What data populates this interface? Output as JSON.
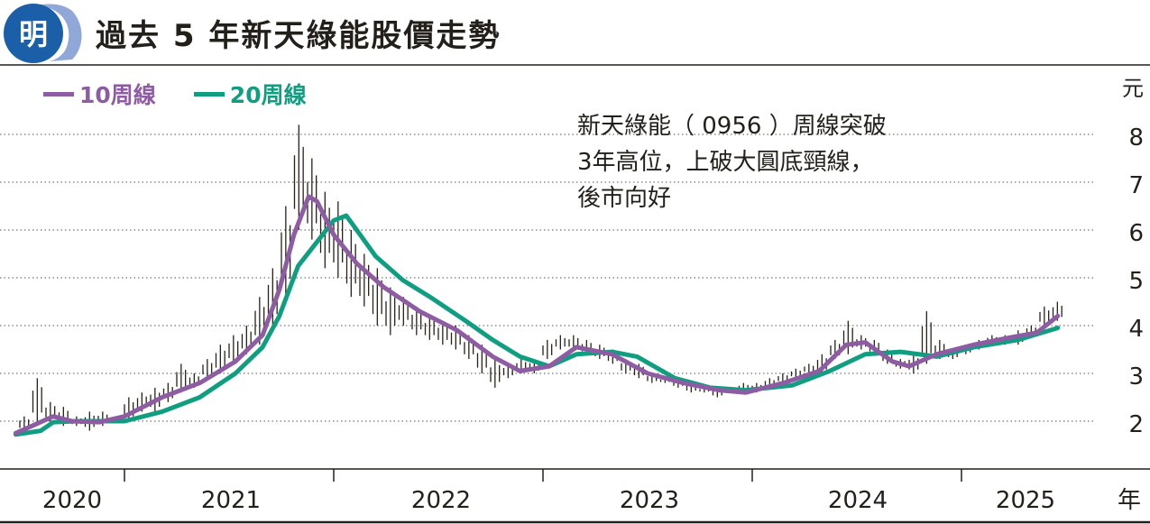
{
  "header": {
    "title": "過去 5 年新天綠能股價走勢",
    "logo_text": "明"
  },
  "colors": {
    "ma10": "#8e5ca3",
    "ma20": "#0f9f80",
    "logo": "#1a5fa8",
    "logo_light": "#8fa8d8",
    "text": "#231f1a"
  },
  "chart_data": {
    "type": "line",
    "title": "過去 5 年新天綠能股價走勢",
    "ylabel": "元",
    "xlabel": "年",
    "ylim": [
      1.5,
      8.5
    ],
    "yticks": [
      "2",
      "3",
      "4",
      "5",
      "6",
      "7",
      "8"
    ],
    "xticks": [
      "2020",
      "2021",
      "2022",
      "2023",
      "2024",
      "2025"
    ],
    "grid": true,
    "legend_position": "top-left",
    "legend": [
      "10周線",
      "20周線"
    ],
    "annotation": [
      "新天綠能（ 0956 ）周線突破",
      "3年高位，上破大圓底頸線，",
      "後市向好"
    ],
    "series": [
      {
        "name": "10周線",
        "points": [
          [
            2020.48,
            1.75
          ],
          [
            2020.66,
            2.1
          ],
          [
            2020.75,
            2.0
          ],
          [
            2020.88,
            1.98
          ],
          [
            2021.0,
            2.1
          ],
          [
            2021.18,
            2.5
          ],
          [
            2021.36,
            2.8
          ],
          [
            2021.53,
            3.25
          ],
          [
            2021.66,
            3.8
          ],
          [
            2021.74,
            4.75
          ],
          [
            2021.81,
            5.9
          ],
          [
            2021.88,
            6.7
          ],
          [
            2021.92,
            6.6
          ],
          [
            2022.0,
            5.9
          ],
          [
            2022.11,
            5.3
          ],
          [
            2022.24,
            4.8
          ],
          [
            2022.41,
            4.3
          ],
          [
            2022.59,
            3.9
          ],
          [
            2022.76,
            3.35
          ],
          [
            2022.89,
            3.05
          ],
          [
            2023.03,
            3.15
          ],
          [
            2023.16,
            3.55
          ],
          [
            2023.33,
            3.4
          ],
          [
            2023.5,
            3.0
          ],
          [
            2023.67,
            2.8
          ],
          [
            2023.84,
            2.65
          ],
          [
            2023.97,
            2.6
          ],
          [
            2024.15,
            2.8
          ],
          [
            2024.32,
            3.05
          ],
          [
            2024.45,
            3.6
          ],
          [
            2024.54,
            3.65
          ],
          [
            2024.67,
            3.25
          ],
          [
            2024.75,
            3.15
          ],
          [
            2024.88,
            3.4
          ],
          [
            2025.06,
            3.6
          ],
          [
            2025.23,
            3.75
          ],
          [
            2025.36,
            3.85
          ],
          [
            2025.46,
            4.2
          ]
        ]
      },
      {
        "name": "20周線",
        "points": [
          [
            2020.48,
            1.72
          ],
          [
            2020.6,
            1.8
          ],
          [
            2020.66,
            1.98
          ],
          [
            2020.77,
            2.0
          ],
          [
            2021.0,
            2.0
          ],
          [
            2021.18,
            2.2
          ],
          [
            2021.36,
            2.5
          ],
          [
            2021.53,
            3.0
          ],
          [
            2021.66,
            3.55
          ],
          [
            2021.74,
            4.2
          ],
          [
            2021.83,
            5.25
          ],
          [
            2021.92,
            5.75
          ],
          [
            2022.0,
            6.2
          ],
          [
            2022.06,
            6.3
          ],
          [
            2022.11,
            6.0
          ],
          [
            2022.2,
            5.45
          ],
          [
            2022.33,
            4.95
          ],
          [
            2022.46,
            4.6
          ],
          [
            2022.63,
            4.1
          ],
          [
            2022.76,
            3.7
          ],
          [
            2022.89,
            3.35
          ],
          [
            2023.03,
            3.15
          ],
          [
            2023.16,
            3.4
          ],
          [
            2023.33,
            3.45
          ],
          [
            2023.45,
            3.35
          ],
          [
            2023.63,
            2.9
          ],
          [
            2023.8,
            2.7
          ],
          [
            2023.97,
            2.65
          ],
          [
            2024.19,
            2.75
          ],
          [
            2024.37,
            3.05
          ],
          [
            2024.54,
            3.4
          ],
          [
            2024.71,
            3.45
          ],
          [
            2024.88,
            3.35
          ],
          [
            2025.06,
            3.55
          ],
          [
            2025.27,
            3.7
          ],
          [
            2025.46,
            3.95
          ]
        ]
      }
    ],
    "candles": {
      "start": 2020.5,
      "step": 0.0625,
      "low_high": [
        [
          1.8,
          2.1
        ],
        [
          2.0,
          2.9
        ],
        [
          2.0,
          2.4
        ],
        [
          1.9,
          2.3
        ],
        [
          1.9,
          2.1
        ],
        [
          1.8,
          2.2
        ],
        [
          1.9,
          2.2
        ],
        [
          2.0,
          2.1
        ],
        [
          2.0,
          2.5
        ],
        [
          2.2,
          2.6
        ],
        [
          2.2,
          2.7
        ],
        [
          2.4,
          2.8
        ],
        [
          2.6,
          3.2
        ],
        [
          2.7,
          3.0
        ],
        [
          2.9,
          3.3
        ],
        [
          3.0,
          3.6
        ],
        [
          3.2,
          3.8
        ],
        [
          3.4,
          4.0
        ],
        [
          3.6,
          4.6
        ],
        [
          4.0,
          5.2
        ],
        [
          4.6,
          6.5
        ],
        [
          6.0,
          8.2
        ],
        [
          5.8,
          7.5
        ],
        [
          5.2,
          6.8
        ],
        [
          5.0,
          6.6
        ],
        [
          4.6,
          6.0
        ],
        [
          4.4,
          5.5
        ],
        [
          4.0,
          5.2
        ],
        [
          3.8,
          4.8
        ],
        [
          4.0,
          4.6
        ],
        [
          3.8,
          4.4
        ],
        [
          3.7,
          4.2
        ],
        [
          3.6,
          4.1
        ],
        [
          3.5,
          4.0
        ],
        [
          3.3,
          3.8
        ],
        [
          3.0,
          3.6
        ],
        [
          2.7,
          3.3
        ],
        [
          2.9,
          3.2
        ],
        [
          3.0,
          3.3
        ],
        [
          3.0,
          3.3
        ],
        [
          3.3,
          3.7
        ],
        [
          3.5,
          3.8
        ],
        [
          3.5,
          3.8
        ],
        [
          3.4,
          3.7
        ],
        [
          3.3,
          3.6
        ],
        [
          3.2,
          3.5
        ],
        [
          3.0,
          3.3
        ],
        [
          2.9,
          3.2
        ],
        [
          2.8,
          3.0
        ],
        [
          2.8,
          2.9
        ],
        [
          2.7,
          2.9
        ],
        [
          2.6,
          2.8
        ],
        [
          2.6,
          2.7
        ],
        [
          2.5,
          2.7
        ],
        [
          2.6,
          2.7
        ],
        [
          2.6,
          2.8
        ],
        [
          2.6,
          2.8
        ],
        [
          2.7,
          2.9
        ],
        [
          2.8,
          3.0
        ],
        [
          2.9,
          3.1
        ],
        [
          3.0,
          3.2
        ],
        [
          3.0,
          3.4
        ],
        [
          3.3,
          3.7
        ],
        [
          3.4,
          4.1
        ],
        [
          3.5,
          3.8
        ],
        [
          3.4,
          3.7
        ],
        [
          3.2,
          3.5
        ],
        [
          3.1,
          3.3
        ],
        [
          3.0,
          3.4
        ],
        [
          3.2,
          4.3
        ],
        [
          3.3,
          3.7
        ],
        [
          3.3,
          3.5
        ],
        [
          3.4,
          3.6
        ],
        [
          3.5,
          3.7
        ],
        [
          3.6,
          3.8
        ],
        [
          3.6,
          3.8
        ],
        [
          3.6,
          3.9
        ],
        [
          3.8,
          4.0
        ],
        [
          4.0,
          4.4
        ],
        [
          4.1,
          4.5
        ]
      ]
    }
  }
}
